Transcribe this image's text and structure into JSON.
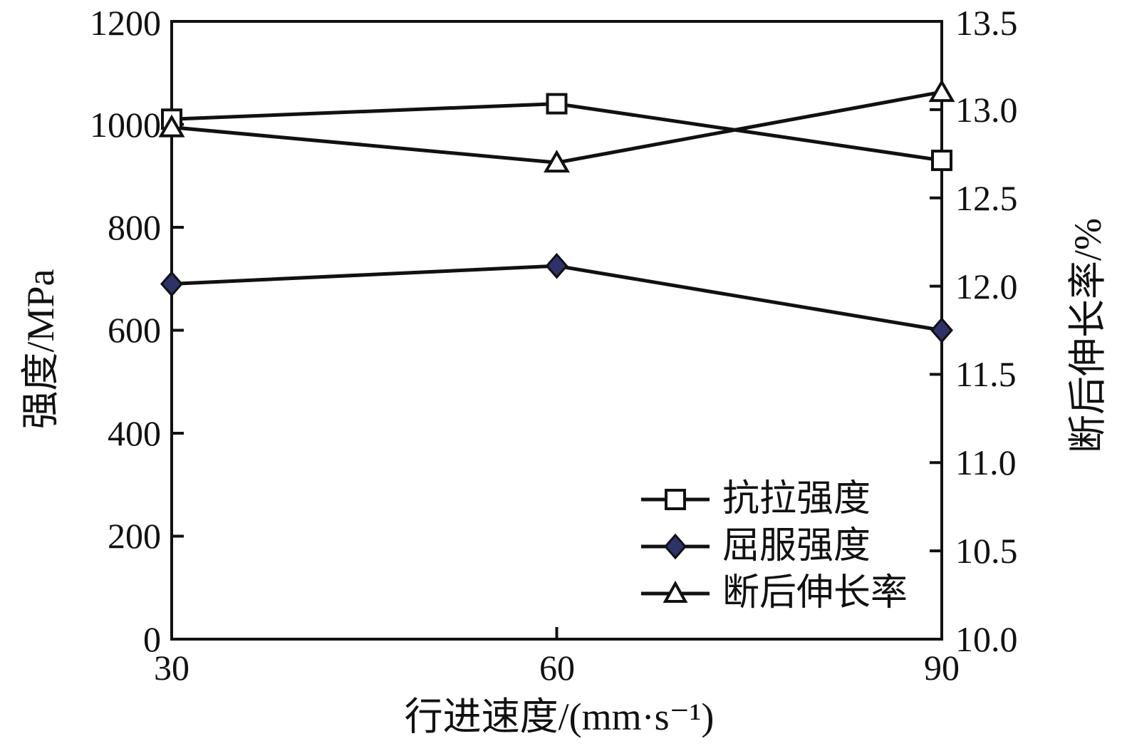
{
  "chart_data": {
    "type": "line",
    "title": "",
    "xlabel": "行进速度/(mm·s⁻¹)",
    "ylabel_left": "强度/MPa",
    "ylabel_right": "断后伸长率/%",
    "x": [
      30,
      60,
      90
    ],
    "x_tick_labels": [
      "30",
      "60",
      "90"
    ],
    "xlim": [
      30,
      90
    ],
    "ylim_left": [
      0,
      1200
    ],
    "yticks_left": [
      "0",
      "200",
      "400",
      "600",
      "800",
      "1000",
      "1200"
    ],
    "yticks_left_values": [
      0,
      200,
      400,
      600,
      800,
      1000,
      1200
    ],
    "ylim_right": [
      10.0,
      13.5
    ],
    "yticks_right": [
      "10.0",
      "10.5",
      "11.0",
      "11.5",
      "12.0",
      "12.5",
      "13.0",
      "13.5"
    ],
    "yticks_right_values": [
      10.0,
      10.5,
      11.0,
      11.5,
      12.0,
      12.5,
      13.0,
      13.5
    ],
    "grid": false,
    "legend_position": "lower-right-inside",
    "series": [
      {
        "name": "抗拉强度",
        "axis": "left",
        "marker": "square-open",
        "values": [
          1010,
          1040,
          930
        ]
      },
      {
        "name": "屈服强度",
        "axis": "left",
        "marker": "diamond-filled",
        "values": [
          690,
          725,
          600
        ]
      },
      {
        "name": "断后伸长率",
        "axis": "right",
        "marker": "triangle-open",
        "values": [
          12.9,
          12.7,
          13.1
        ]
      }
    ],
    "colors": {
      "line": "#111111",
      "marker_stroke": "#111111",
      "open_marker_fill": "#ffffff",
      "diamond_fill": "#2d3268",
      "background": "#ffffff"
    }
  }
}
